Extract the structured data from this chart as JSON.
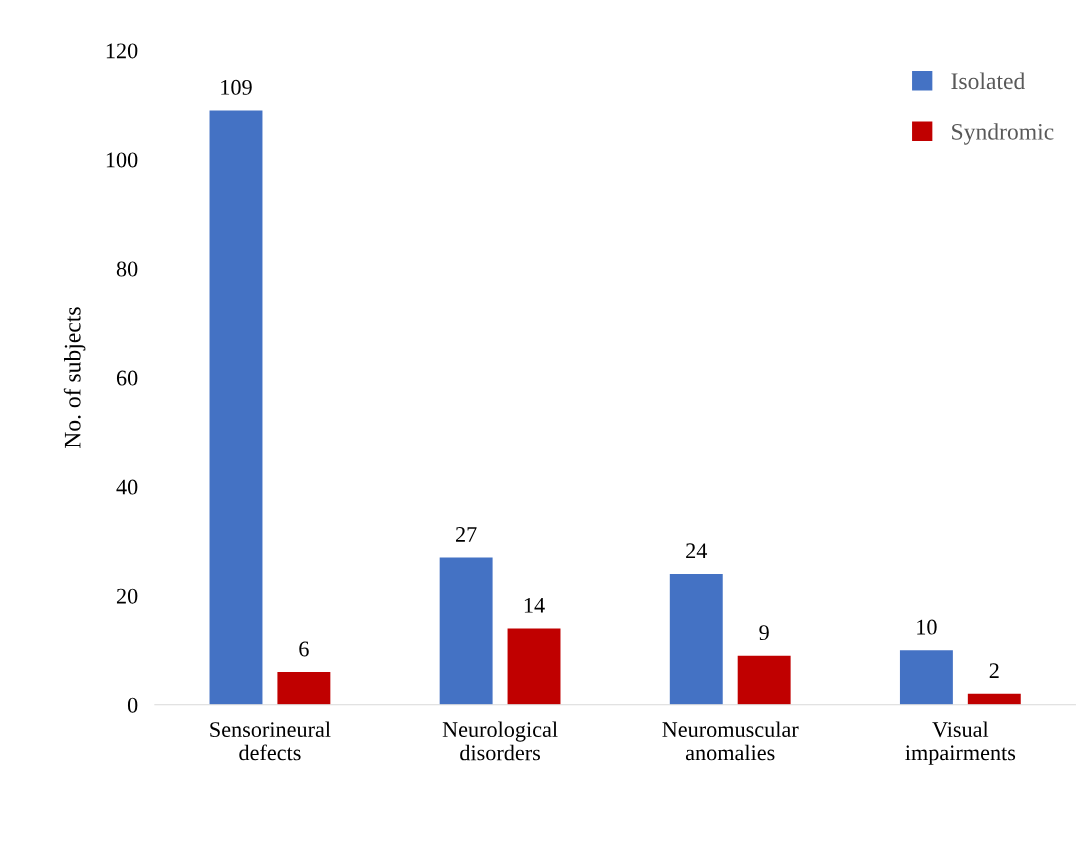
{
  "chart_data": {
    "type": "bar",
    "ylabel": "No. of subjects",
    "categories": [
      "Sensorineural\ndefects",
      "Neurological\ndisorders",
      "Neuromuscular\nanomalies",
      "Visual\nimpairments"
    ],
    "series": [
      {
        "name": "Isolated",
        "color": "#4472c4",
        "values": [
          109,
          27,
          24,
          10
        ]
      },
      {
        "name": "Syndromic",
        "color": "#c00000",
        "values": [
          6,
          14,
          9,
          2
        ]
      }
    ],
    "ylim": [
      0,
      120
    ],
    "yticks": [
      0,
      20,
      40,
      60,
      80,
      100,
      120
    ],
    "grid": false,
    "legend": "top right",
    "data_labels": true
  }
}
